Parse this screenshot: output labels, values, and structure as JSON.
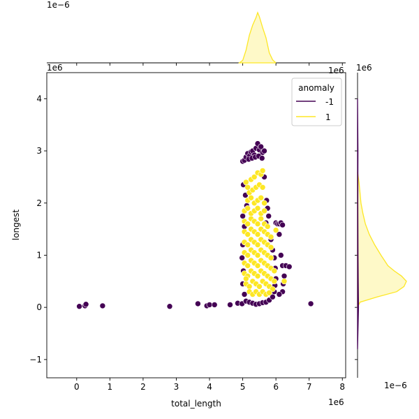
{
  "chart_data": {
    "type": "scatter",
    "title": "",
    "xlabel": "total_length",
    "ylabel": "longest",
    "x_offset_label": "1e6",
    "y_offset_label": "1e6",
    "top_density_offset_label": "1e−6",
    "top_density_tick_offset": "1e6",
    "right_density_offset_label": "1e−6",
    "right_density_tick_offset": "1e6",
    "xlim": [
      -0.9,
      8.1
    ],
    "ylim": [
      -1.35,
      4.5
    ],
    "xticks": [
      "0",
      "1",
      "2",
      "3",
      "4",
      "5",
      "6",
      "7",
      "8"
    ],
    "yticks": [
      "−1",
      "0",
      "1",
      "2",
      "3",
      "4"
    ],
    "grid": false,
    "legend": {
      "title": "anomaly",
      "placement": "top-right",
      "entries": [
        {
          "label": "-1",
          "color": "#440154"
        },
        {
          "label": "1",
          "color": "#fde725"
        }
      ]
    },
    "series": [
      {
        "name": "-1",
        "color": "#440154",
        "points": [
          [
            0.08,
            0.02
          ],
          [
            0.25,
            0.03
          ],
          [
            0.28,
            0.06
          ],
          [
            0.78,
            0.03
          ],
          [
            2.8,
            0.02
          ],
          [
            3.65,
            0.07
          ],
          [
            3.92,
            0.03
          ],
          [
            4.0,
            0.05
          ],
          [
            4.15,
            0.05
          ],
          [
            4.62,
            0.05
          ],
          [
            4.85,
            0.08
          ],
          [
            4.98,
            0.07
          ],
          [
            7.05,
            0.07
          ],
          [
            5.0,
            2.8
          ],
          [
            5.05,
            2.82
          ],
          [
            5.1,
            2.88
          ],
          [
            5.15,
            2.95
          ],
          [
            5.2,
            2.9
          ],
          [
            5.25,
            2.98
          ],
          [
            5.3,
            3.0
          ],
          [
            5.35,
            2.92
          ],
          [
            5.4,
            3.05
          ],
          [
            5.45,
            3.14
          ],
          [
            5.5,
            3.02
          ],
          [
            5.55,
            3.08
          ],
          [
            5.6,
            2.97
          ],
          [
            5.65,
            3.0
          ],
          [
            5.18,
            2.84
          ],
          [
            5.28,
            2.86
          ],
          [
            5.38,
            2.88
          ],
          [
            5.48,
            2.9
          ],
          [
            5.58,
            2.86
          ],
          [
            5.02,
            2.35
          ],
          [
            5.08,
            2.15
          ],
          [
            5.12,
            1.95
          ],
          [
            5.0,
            1.75
          ],
          [
            5.05,
            1.55
          ],
          [
            5.0,
            1.2
          ],
          [
            4.98,
            0.95
          ],
          [
            5.02,
            0.7
          ],
          [
            5.0,
            0.45
          ],
          [
            5.05,
            0.25
          ],
          [
            5.1,
            0.12
          ],
          [
            5.2,
            0.1
          ],
          [
            5.3,
            0.08
          ],
          [
            5.4,
            0.06
          ],
          [
            5.5,
            0.07
          ],
          [
            5.6,
            0.09
          ],
          [
            5.7,
            0.1
          ],
          [
            5.8,
            0.14
          ],
          [
            5.9,
            0.2
          ],
          [
            5.95,
            0.3
          ],
          [
            5.65,
            2.5
          ],
          [
            5.72,
            2.05
          ],
          [
            5.75,
            1.9
          ],
          [
            5.78,
            1.75
          ],
          [
            5.7,
            1.62
          ],
          [
            5.85,
            1.3
          ],
          [
            5.9,
            1.1
          ],
          [
            5.95,
            0.95
          ],
          [
            5.98,
            0.75
          ],
          [
            6.0,
            0.55
          ],
          [
            6.0,
            1.62
          ],
          [
            6.05,
            1.6
          ],
          [
            6.1,
            1.6
          ],
          [
            6.15,
            1.62
          ],
          [
            6.2,
            1.58
          ],
          [
            6.1,
            1.4
          ],
          [
            6.15,
            1.0
          ],
          [
            6.2,
            0.8
          ],
          [
            6.25,
            0.6
          ],
          [
            6.3,
            0.8
          ],
          [
            6.4,
            0.78
          ],
          [
            6.22,
            0.45
          ],
          [
            6.2,
            0.3
          ],
          [
            6.1,
            0.25
          ],
          [
            5.97,
            0.42
          ]
        ]
      },
      {
        "name": "1",
        "color": "#fde725",
        "points": [
          [
            5.1,
            2.4
          ],
          [
            5.15,
            2.3
          ],
          [
            5.25,
            2.45
          ],
          [
            5.35,
            2.5
          ],
          [
            5.45,
            2.58
          ],
          [
            5.55,
            2.55
          ],
          [
            5.2,
            2.2
          ],
          [
            5.3,
            2.25
          ],
          [
            5.4,
            2.3
          ],
          [
            5.5,
            2.35
          ],
          [
            5.6,
            2.3
          ],
          [
            5.15,
            2.05
          ],
          [
            5.25,
            2.1
          ],
          [
            5.35,
            2.0
          ],
          [
            5.45,
            2.05
          ],
          [
            5.55,
            2.1
          ],
          [
            5.65,
            2.0
          ],
          [
            5.05,
            1.85
          ],
          [
            5.15,
            1.9
          ],
          [
            5.25,
            1.8
          ],
          [
            5.35,
            1.85
          ],
          [
            5.45,
            1.9
          ],
          [
            5.55,
            1.8
          ],
          [
            5.65,
            1.85
          ],
          [
            5.05,
            1.65
          ],
          [
            5.15,
            1.6
          ],
          [
            5.25,
            1.7
          ],
          [
            5.35,
            1.65
          ],
          [
            5.45,
            1.6
          ],
          [
            5.55,
            1.7
          ],
          [
            5.65,
            1.6
          ],
          [
            5.75,
            1.55
          ],
          [
            5.05,
            1.45
          ],
          [
            5.15,
            1.4
          ],
          [
            5.25,
            1.5
          ],
          [
            5.35,
            1.45
          ],
          [
            5.45,
            1.4
          ],
          [
            5.55,
            1.5
          ],
          [
            5.65,
            1.45
          ],
          [
            5.75,
            1.4
          ],
          [
            5.85,
            1.35
          ],
          [
            5.05,
            1.25
          ],
          [
            5.15,
            1.2
          ],
          [
            5.25,
            1.3
          ],
          [
            5.35,
            1.25
          ],
          [
            5.45,
            1.2
          ],
          [
            5.55,
            1.3
          ],
          [
            5.65,
            1.25
          ],
          [
            5.75,
            1.2
          ],
          [
            5.85,
            1.15
          ],
          [
            5.05,
            1.05
          ],
          [
            5.15,
            1.0
          ],
          [
            5.25,
            1.1
          ],
          [
            5.35,
            1.05
          ],
          [
            5.45,
            1.0
          ],
          [
            5.55,
            1.1
          ],
          [
            5.65,
            1.05
          ],
          [
            5.75,
            1.0
          ],
          [
            5.85,
            0.95
          ],
          [
            5.05,
            0.85
          ],
          [
            5.15,
            0.8
          ],
          [
            5.25,
            0.9
          ],
          [
            5.35,
            0.85
          ],
          [
            5.45,
            0.8
          ],
          [
            5.55,
            0.9
          ],
          [
            5.65,
            0.85
          ],
          [
            5.75,
            0.8
          ],
          [
            5.85,
            0.75
          ],
          [
            5.95,
            0.7
          ],
          [
            5.05,
            0.65
          ],
          [
            5.15,
            0.6
          ],
          [
            5.25,
            0.7
          ],
          [
            5.35,
            0.65
          ],
          [
            5.45,
            0.6
          ],
          [
            5.55,
            0.7
          ],
          [
            5.65,
            0.65
          ],
          [
            5.75,
            0.6
          ],
          [
            5.85,
            0.55
          ],
          [
            5.95,
            0.5
          ],
          [
            5.1,
            0.45
          ],
          [
            5.2,
            0.4
          ],
          [
            5.3,
            0.5
          ],
          [
            5.4,
            0.45
          ],
          [
            5.5,
            0.4
          ],
          [
            5.6,
            0.5
          ],
          [
            5.7,
            0.45
          ],
          [
            5.8,
            0.4
          ],
          [
            5.9,
            0.35
          ],
          [
            5.2,
            0.3
          ],
          [
            5.3,
            0.25
          ],
          [
            5.4,
            0.3
          ],
          [
            5.5,
            0.25
          ],
          [
            5.6,
            0.3
          ],
          [
            5.7,
            0.25
          ],
          [
            5.8,
            0.28
          ],
          [
            5.6,
            2.62
          ],
          [
            6.0,
            1.48
          ],
          [
            6.25,
            0.5
          ],
          [
            5.1,
            0.55
          ]
        ]
      }
    ],
    "top_density": {
      "series": [
        {
          "name": "1",
          "color": "#fde725",
          "x": [
            4.9,
            5.0,
            5.1,
            5.2,
            5.3,
            5.4,
            5.45,
            5.5,
            5.6,
            5.7,
            5.8,
            5.9,
            6.0
          ],
          "density": [
            0.0,
            0.05,
            0.25,
            0.55,
            0.75,
            0.9,
            1.0,
            0.92,
            0.7,
            0.5,
            0.2,
            0.06,
            0.0
          ]
        }
      ]
    },
    "right_density": {
      "series": [
        {
          "name": "1",
          "color": "#fde725",
          "y": [
            0.0,
            0.1,
            0.2,
            0.3,
            0.4,
            0.5,
            0.6,
            0.7,
            0.8,
            0.9,
            1.0,
            1.2,
            1.4,
            1.6,
            1.8,
            2.0,
            2.2,
            2.4,
            2.6
          ],
          "density": [
            0.0,
            0.05,
            0.4,
            0.8,
            0.95,
            1.0,
            0.9,
            0.75,
            0.62,
            0.55,
            0.48,
            0.35,
            0.24,
            0.16,
            0.11,
            0.07,
            0.05,
            0.03,
            0.0
          ]
        },
        {
          "name": "-1",
          "color": "#440154",
          "y": [
            -0.8,
            0.0,
            0.5,
            1.0,
            2.0,
            3.0,
            4.0
          ],
          "density": [
            0.0,
            0.02,
            0.015,
            0.01,
            0.006,
            0.008,
            0.0
          ]
        }
      ]
    }
  }
}
